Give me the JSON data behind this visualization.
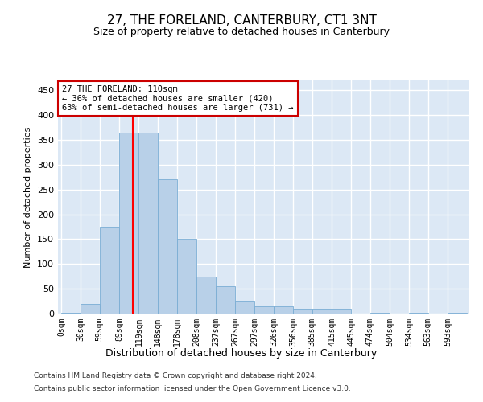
{
  "title": "27, THE FORELAND, CANTERBURY, CT1 3NT",
  "subtitle": "Size of property relative to detached houses in Canterbury",
  "xlabel": "Distribution of detached houses by size in Canterbury",
  "ylabel": "Number of detached properties",
  "bar_color": "#b8d0e8",
  "bar_edge_color": "#7aadd4",
  "background_color": "#dce8f5",
  "grid_color": "#ffffff",
  "red_line_x": 110,
  "annotation_text": "27 THE FORELAND: 110sqm\n← 36% of detached houses are smaller (420)\n63% of semi-detached houses are larger (731) →",
  "annotation_box_color": "#ffffff",
  "annotation_box_edge": "#cc0000",
  "footnote1": "Contains HM Land Registry data © Crown copyright and database right 2024.",
  "footnote2": "Contains public sector information licensed under the Open Government Licence v3.0.",
  "bin_edges": [
    0,
    30,
    59,
    89,
    119,
    148,
    178,
    208,
    237,
    267,
    297,
    326,
    356,
    385,
    415,
    445,
    474,
    504,
    534,
    563,
    593,
    623
  ],
  "bin_labels": [
    "0sqm",
    "30sqm",
    "59sqm",
    "89sqm",
    "119sqm",
    "148sqm",
    "178sqm",
    "208sqm",
    "237sqm",
    "267sqm",
    "297sqm",
    "326sqm",
    "356sqm",
    "385sqm",
    "415sqm",
    "445sqm",
    "474sqm",
    "504sqm",
    "534sqm",
    "563sqm",
    "593sqm"
  ],
  "bar_heights": [
    2,
    20,
    175,
    365,
    365,
    270,
    150,
    75,
    55,
    25,
    15,
    15,
    10,
    10,
    10,
    0,
    2,
    0,
    2,
    0,
    2
  ],
  "ylim": [
    0,
    470
  ],
  "yticks": [
    0,
    50,
    100,
    150,
    200,
    250,
    300,
    350,
    400,
    450
  ]
}
